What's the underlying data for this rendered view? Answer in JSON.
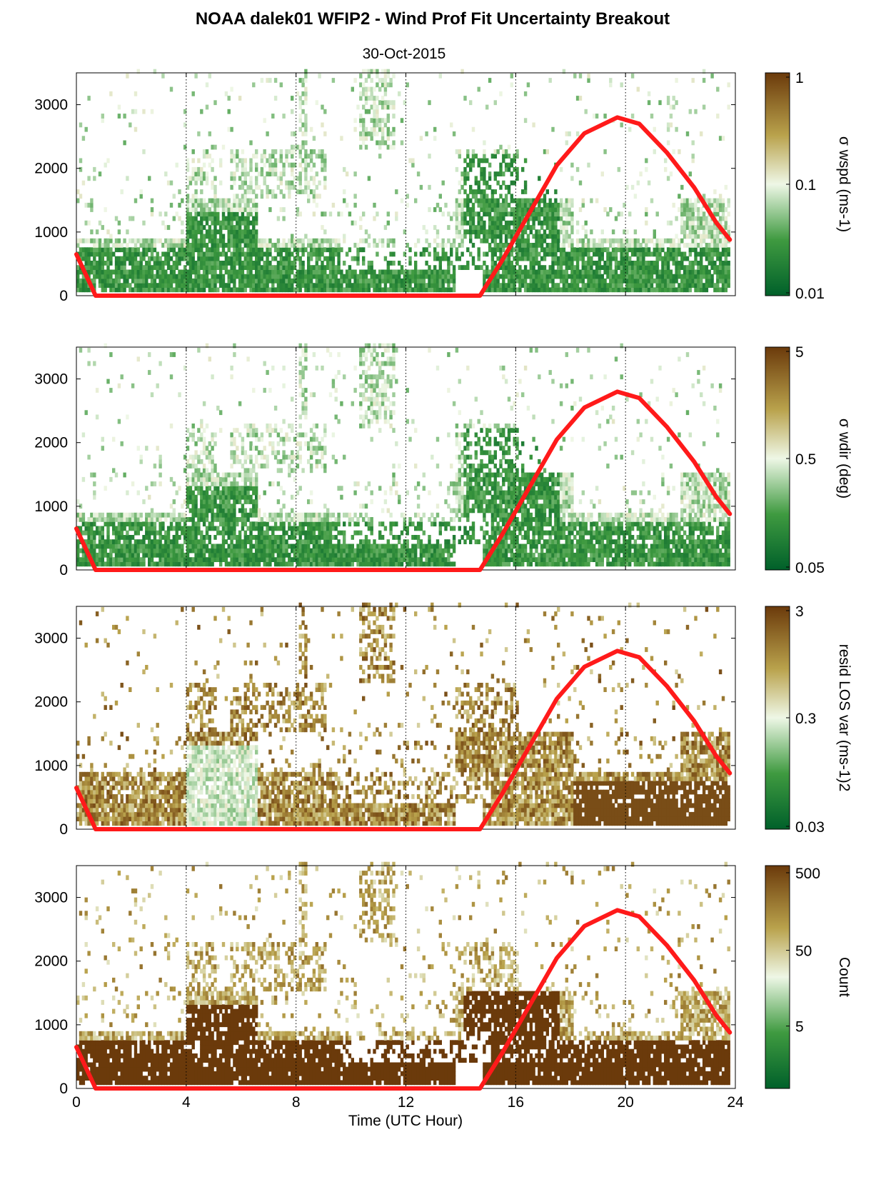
{
  "figure": {
    "title": "NOAA dalek01 WFIP2 - Wind Prof Fit Uncertainty Breakout",
    "subtitle": "30-Oct-2015",
    "xlabel": "Time (UTC Hour)"
  },
  "colors": {
    "curve": "#ff1a1a",
    "scale_low": "#00602a",
    "scale_mid": "#eef7e6",
    "scale_high": "#6b3a0b"
  },
  "chart_data": [
    {
      "type": "heatmap",
      "name": "σ wspd",
      "colorbar_label": "σ wspd (ms-1)",
      "colorbar_ticks": [
        "1",
        "0.1",
        "0.01"
      ],
      "colorbar_scale": "log",
      "colorbar_range": [
        0.01,
        1
      ],
      "x_ticks": [
        "0",
        "4",
        "8",
        "12",
        "16",
        "20",
        "24"
      ],
      "y_ticks": [
        "0",
        "1000",
        "2000",
        "3000"
      ],
      "xlim": [
        0,
        24
      ],
      "ylim": [
        0,
        3500
      ],
      "grid": "vertical dotted lines at 4, 8, 12, 16, 20",
      "curve": {
        "x": [
          0,
          0.7,
          14.7,
          15.5,
          16.5,
          17.5,
          18.5,
          19.7,
          20.5,
          21.5,
          22.5,
          23.3,
          23.8
        ],
        "y": [
          650,
          0,
          0,
          550,
          1300,
          2050,
          2550,
          2800,
          2700,
          2250,
          1700,
          1150,
          880
        ]
      }
    },
    {
      "type": "heatmap",
      "name": "σ wdir",
      "colorbar_label": "σ wdir (deg)",
      "colorbar_ticks": [
        "5",
        "0.5",
        "0.05"
      ],
      "colorbar_scale": "log",
      "colorbar_range": [
        0.05,
        5
      ],
      "x_ticks": [
        "0",
        "4",
        "8",
        "12",
        "16",
        "20",
        "24"
      ],
      "y_ticks": [
        "0",
        "1000",
        "2000",
        "3000"
      ],
      "xlim": [
        0,
        24
      ],
      "ylim": [
        0,
        3500
      ],
      "curve": {
        "x": [
          0,
          0.7,
          14.7,
          15.5,
          16.5,
          17.5,
          18.5,
          19.7,
          20.5,
          21.5,
          22.5,
          23.3,
          23.8
        ],
        "y": [
          650,
          0,
          0,
          550,
          1300,
          2050,
          2550,
          2800,
          2700,
          2250,
          1700,
          1150,
          880
        ]
      }
    },
    {
      "type": "heatmap",
      "name": "resid LOS var",
      "colorbar_label": "resid LOS var (ms-1)2",
      "colorbar_ticks": [
        "3",
        "0.3",
        "0.03"
      ],
      "colorbar_scale": "log",
      "colorbar_range": [
        0.03,
        3
      ],
      "x_ticks": [
        "0",
        "4",
        "8",
        "12",
        "16",
        "20",
        "24"
      ],
      "y_ticks": [
        "0",
        "1000",
        "2000",
        "3000"
      ],
      "xlim": [
        0,
        24
      ],
      "ylim": [
        0,
        3500
      ],
      "curve": {
        "x": [
          0,
          0.7,
          14.7,
          15.5,
          16.5,
          17.5,
          18.5,
          19.7,
          20.5,
          21.5,
          22.5,
          23.3,
          23.8
        ],
        "y": [
          650,
          0,
          0,
          550,
          1300,
          2050,
          2550,
          2800,
          2700,
          2250,
          1700,
          1150,
          880
        ]
      }
    },
    {
      "type": "heatmap",
      "name": "Count",
      "colorbar_label": "Count",
      "colorbar_ticks": [
        "500",
        "50",
        "5"
      ],
      "colorbar_scale": "log",
      "colorbar_range": [
        1,
        500
      ],
      "x_ticks": [
        "0",
        "4",
        "8",
        "12",
        "16",
        "20",
        "24"
      ],
      "y_ticks": [
        "0",
        "1000",
        "2000",
        "3000"
      ],
      "xlim": [
        0,
        24
      ],
      "ylim": [
        0,
        3500
      ],
      "curve": {
        "x": [
          0,
          0.7,
          14.7,
          15.5,
          16.5,
          17.5,
          18.5,
          19.7,
          20.5,
          21.5,
          22.5,
          23.3,
          23.8
        ],
        "y": [
          650,
          0,
          0,
          550,
          1300,
          2050,
          2550,
          2800,
          2700,
          2250,
          1700,
          1150,
          880
        ]
      }
    }
  ]
}
